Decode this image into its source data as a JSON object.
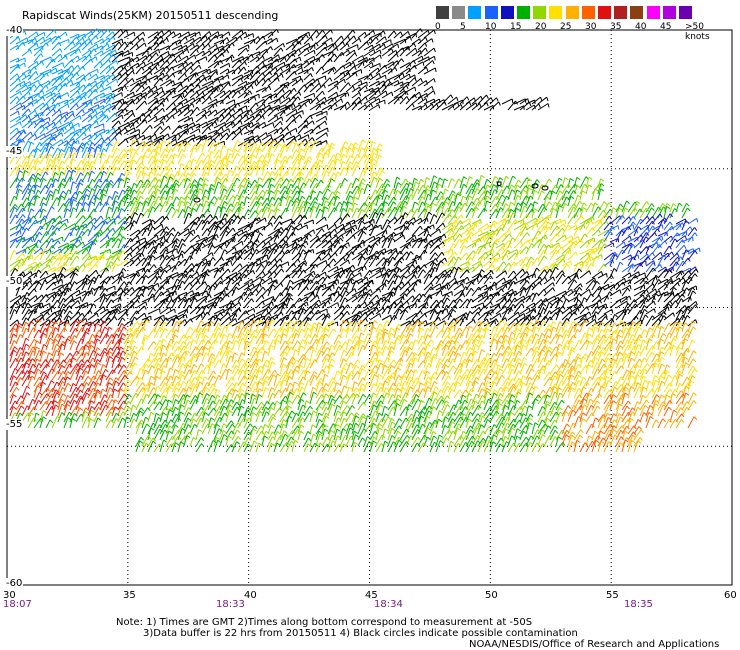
{
  "title": "Rapidscat Winds(25KM) 20150511 descending",
  "legend": {
    "colors": [
      "#404040",
      "#8a8a8a",
      "#00a0ff",
      "#1a60ff",
      "#1010c0",
      "#00b000",
      "#90d800",
      "#ffe000",
      "#ffb000",
      "#ff6000",
      "#e01010",
      "#b02020",
      "#8a4010",
      "#ff00ff",
      "#b000e0",
      "#6a00b0"
    ],
    "ticks": [
      "0",
      "5",
      "10",
      "15",
      "20",
      "25",
      "30",
      "35",
      "40",
      "45",
      ">50 knots"
    ]
  },
  "axes": {
    "x_labels": [
      "30",
      "35",
      "40",
      "45",
      "50",
      "55",
      "60"
    ],
    "y_labels": [
      "-40",
      "-45",
      "-50",
      "-55",
      "-60"
    ],
    "times": [
      "18:07",
      "18:33",
      "18:34",
      "18:35"
    ]
  },
  "notes": {
    "line1": "Note: 1) Times are GMT 2)Times along bottom correspond to measurement at -50S",
    "line2": "3)Data buffer is 22 hrs from 20150511 4) Black circles indicate possible contamination",
    "line3": "NOAA/NESDIS/Office of Research and Applications"
  },
  "chart_data": {
    "type": "wind-barb-map",
    "title": "Rapidscat Winds(25KM) 20150511 descending",
    "xlim": [
      30,
      60
    ],
    "ylim": [
      -60,
      -40
    ],
    "units": "knots"
  }
}
